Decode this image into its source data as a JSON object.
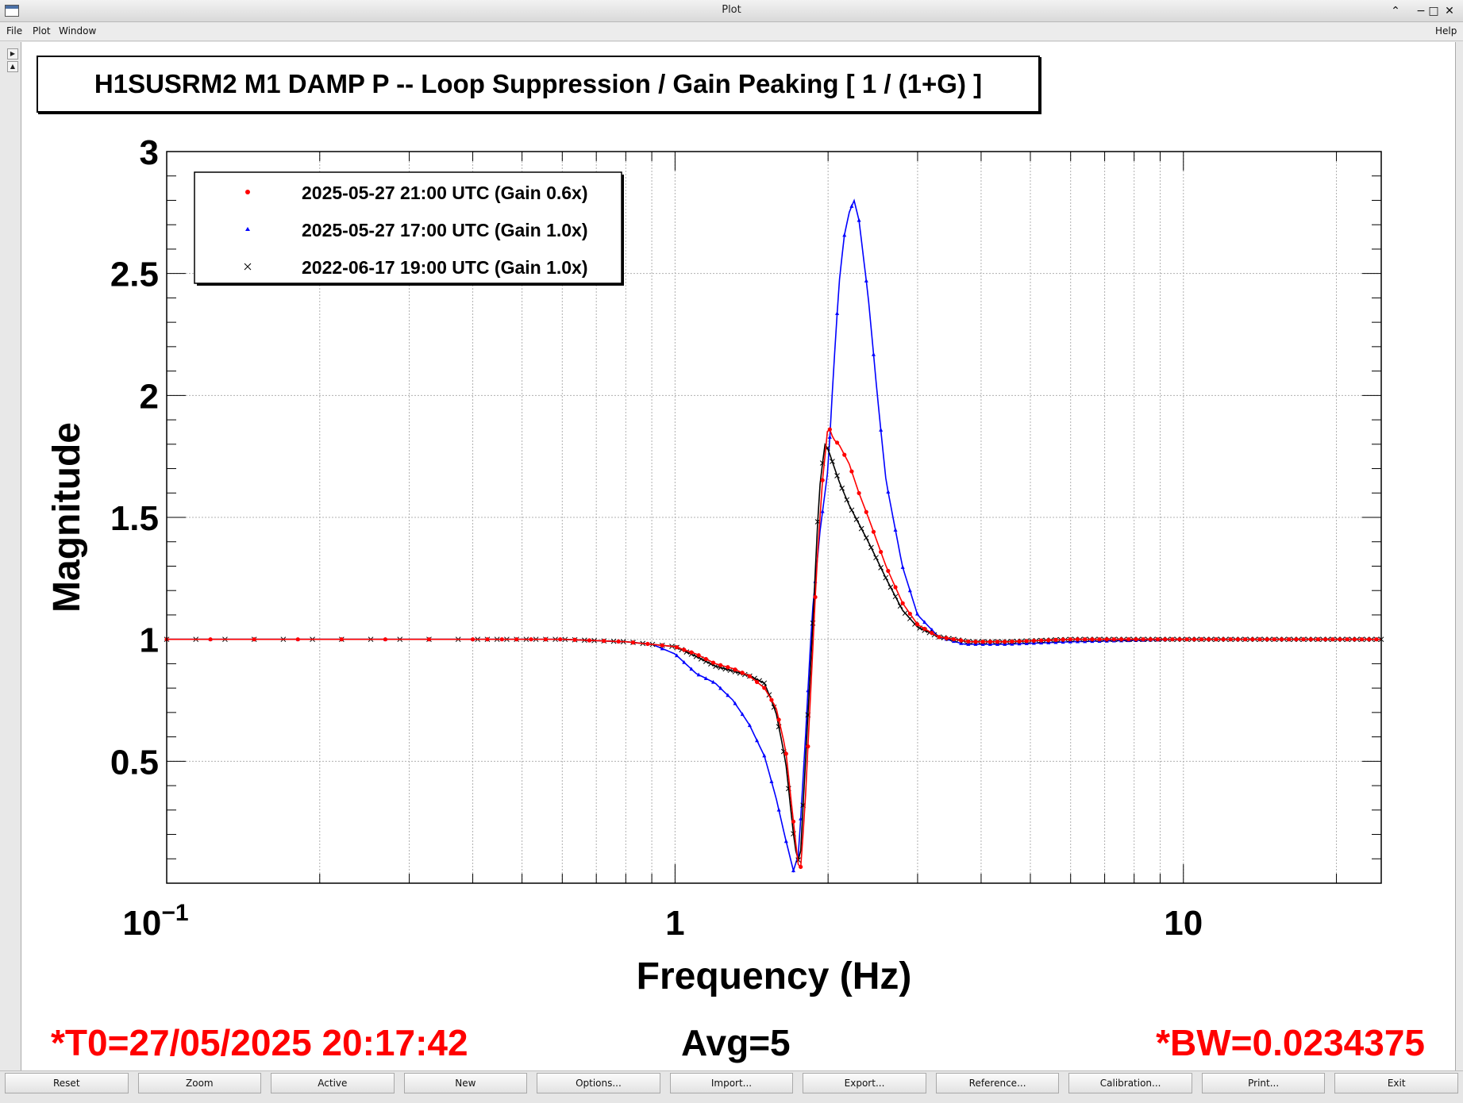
{
  "window": {
    "title": "Plot",
    "controls": [
      "⌃",
      "−",
      "□",
      "✕"
    ]
  },
  "menu": {
    "file": "File",
    "plot": "Plot",
    "window": "Window",
    "help": "Help"
  },
  "plot_title": "H1SUSRM2 M1 DAMP P -- Loop Suppression / Gain Peaking [ 1 / (1+G) ]",
  "footer": {
    "t0": "*T0=27/05/2025 20:17:42",
    "avg": "Avg=5",
    "bw": "*BW=0.0234375"
  },
  "buttons": [
    "Reset",
    "Zoom",
    "Active",
    "New",
    "Options...",
    "Import...",
    "Export...",
    "Reference...",
    "Calibration...",
    "Print...",
    "Exit"
  ],
  "colors": {
    "series_red": "#ff0000",
    "series_blue": "#0000ff",
    "series_black": "#000000"
  },
  "chart_data": {
    "type": "line",
    "title": "H1SUSRM2 M1 DAMP P -- Loop Suppression / Gain Peaking [ 1 / (1+G) ]",
    "xlabel": "Frequency (Hz)",
    "ylabel": "Magnitude",
    "x_scale": "log",
    "xlim": [
      0.1,
      24.5
    ],
    "ylim": [
      0.0,
      3.0
    ],
    "x_ticks": [
      {
        "value": 0.1,
        "base": "10",
        "exp": "−1"
      },
      {
        "value": 1,
        "label": "1"
      },
      {
        "value": 10,
        "label": "10"
      }
    ],
    "y_ticks": [
      0.5,
      1,
      1.5,
      2,
      2.5,
      3
    ],
    "y_tick_labels": [
      "0.5",
      "1",
      "1.5",
      "2",
      "2.5",
      "3"
    ],
    "grid": true,
    "legend_position": "top-left",
    "series": [
      {
        "name": "2025-05-27 21:00 UTC (Gain 0.6x)",
        "color": "#ff0000",
        "marker": "dot",
        "points": [
          [
            0.1,
            1.0
          ],
          [
            0.2,
            1.0
          ],
          [
            0.4,
            1.0
          ],
          [
            0.6,
            1.0
          ],
          [
            0.8,
            0.99
          ],
          [
            1.0,
            0.97
          ],
          [
            1.1,
            0.94
          ],
          [
            1.2,
            0.9
          ],
          [
            1.3,
            0.88
          ],
          [
            1.4,
            0.85
          ],
          [
            1.5,
            0.8
          ],
          [
            1.58,
            0.72
          ],
          [
            1.65,
            0.55
          ],
          [
            1.72,
            0.2
          ],
          [
            1.76,
            0.02
          ],
          [
            1.8,
            0.3
          ],
          [
            1.85,
            0.8
          ],
          [
            1.9,
            1.3
          ],
          [
            1.95,
            1.65
          ],
          [
            2.0,
            1.88
          ],
          [
            2.05,
            1.82
          ],
          [
            2.1,
            1.8
          ],
          [
            2.2,
            1.72
          ],
          [
            2.3,
            1.6
          ],
          [
            2.4,
            1.5
          ],
          [
            2.6,
            1.3
          ],
          [
            2.8,
            1.15
          ],
          [
            3.0,
            1.06
          ],
          [
            3.3,
            1.01
          ],
          [
            3.8,
            0.99
          ],
          [
            4.5,
            0.99
          ],
          [
            6.0,
            1.0
          ],
          [
            10.0,
            1.0
          ],
          [
            24.5,
            1.0
          ]
        ]
      },
      {
        "name": "2025-05-27 17:00 UTC (Gain 1.0x)",
        "color": "#0000ff",
        "marker": "triangle",
        "points": [
          [
            0.1,
            1.0
          ],
          [
            0.2,
            1.0
          ],
          [
            0.4,
            1.0
          ],
          [
            0.6,
            1.0
          ],
          [
            0.8,
            0.99
          ],
          [
            0.9,
            0.98
          ],
          [
            1.0,
            0.94
          ],
          [
            1.1,
            0.86
          ],
          [
            1.2,
            0.82
          ],
          [
            1.3,
            0.75
          ],
          [
            1.4,
            0.65
          ],
          [
            1.5,
            0.52
          ],
          [
            1.58,
            0.35
          ],
          [
            1.65,
            0.18
          ],
          [
            1.71,
            0.05
          ],
          [
            1.75,
            0.12
          ],
          [
            1.8,
            0.55
          ],
          [
            1.86,
            1.1
          ],
          [
            1.93,
            1.45
          ],
          [
            2.0,
            1.7
          ],
          [
            2.05,
            2.1
          ],
          [
            2.1,
            2.45
          ],
          [
            2.15,
            2.65
          ],
          [
            2.2,
            2.75
          ],
          [
            2.25,
            2.8
          ],
          [
            2.3,
            2.72
          ],
          [
            2.4,
            2.4
          ],
          [
            2.5,
            2.0
          ],
          [
            2.6,
            1.65
          ],
          [
            2.8,
            1.3
          ],
          [
            3.0,
            1.1
          ],
          [
            3.3,
            1.01
          ],
          [
            3.7,
            0.98
          ],
          [
            4.5,
            0.98
          ],
          [
            6.0,
            0.99
          ],
          [
            10.0,
            1.0
          ],
          [
            24.5,
            1.0
          ]
        ]
      },
      {
        "name": "2022-06-17 19:00 UTC (Gain 1.0x)",
        "color": "#000000",
        "marker": "cross",
        "points": [
          [
            0.1,
            1.0
          ],
          [
            0.2,
            1.0
          ],
          [
            0.4,
            1.0
          ],
          [
            0.6,
            1.0
          ],
          [
            0.8,
            0.99
          ],
          [
            1.0,
            0.97
          ],
          [
            1.1,
            0.93
          ],
          [
            1.2,
            0.89
          ],
          [
            1.3,
            0.87
          ],
          [
            1.4,
            0.85
          ],
          [
            1.5,
            0.82
          ],
          [
            1.58,
            0.7
          ],
          [
            1.65,
            0.5
          ],
          [
            1.72,
            0.15
          ],
          [
            1.76,
            0.07
          ],
          [
            1.8,
            0.45
          ],
          [
            1.86,
            1.0
          ],
          [
            1.92,
            1.6
          ],
          [
            1.97,
            1.8
          ],
          [
            2.0,
            1.78
          ],
          [
            2.1,
            1.65
          ],
          [
            2.2,
            1.55
          ],
          [
            2.4,
            1.4
          ],
          [
            2.6,
            1.25
          ],
          [
            2.8,
            1.12
          ],
          [
            3.0,
            1.05
          ],
          [
            3.3,
            1.01
          ],
          [
            3.8,
            0.99
          ],
          [
            4.5,
            0.99
          ],
          [
            6.0,
            1.0
          ],
          [
            10.0,
            1.0
          ],
          [
            24.5,
            1.0
          ]
        ]
      }
    ]
  }
}
